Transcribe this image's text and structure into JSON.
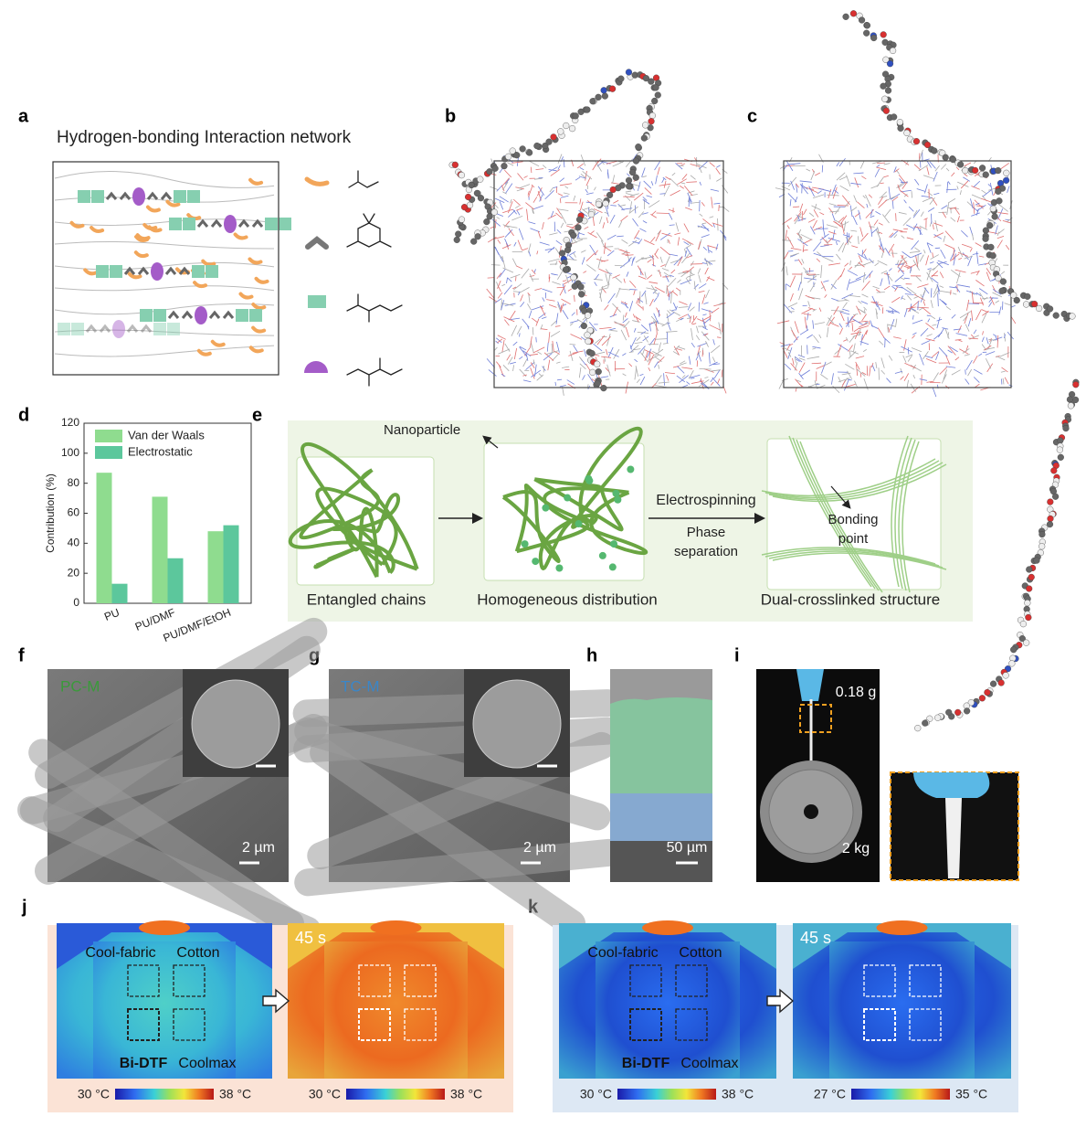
{
  "panel_a": {
    "label": "a",
    "title": "Hydrogen-bonding Interaction network"
  },
  "panel_b": {
    "label": "b"
  },
  "panel_c": {
    "label": "c"
  },
  "chart_data": {
    "panel_label": "d",
    "type": "bar",
    "ylabel": "Contribution (%)",
    "categories": [
      "PU",
      "PU/DMF",
      "PU/DMF/EtOH"
    ],
    "series": [
      {
        "name": "Van der Waals",
        "color": "#8fdc8f",
        "values": [
          87,
          71,
          48
        ]
      },
      {
        "name": "Electrostatic",
        "color": "#5cc79c",
        "values": [
          13,
          30,
          52
        ]
      }
    ],
    "ylim": [
      0,
      120
    ],
    "yticks": [
      0,
      20,
      40,
      60,
      80,
      100,
      120
    ],
    "legend": "top-left",
    "grid": false
  },
  "panel_e": {
    "label": "e",
    "nanoparticle": "Nanoparticle",
    "process_1": "Electrospinning",
    "process_2": [
      "Phase",
      "separation"
    ],
    "bonding": [
      "Bonding",
      "point"
    ],
    "stages": [
      "Entangled chains",
      "Homogeneous distribution",
      "Dual-crosslinked structure"
    ]
  },
  "panel_f": {
    "label": "f",
    "sample": "PC-M",
    "scale_bar": "2 µm"
  },
  "panel_g": {
    "label": "g",
    "sample": "TC-M",
    "scale_bar": "2 µm"
  },
  "panel_h": {
    "label": "h",
    "scale_bar": "50 µm"
  },
  "panel_i": {
    "label": "i",
    "weight_top": "0.18 g",
    "weight_bottom": "2 kg"
  },
  "panel_j": {
    "label": "j",
    "fabrics": [
      "Cool-fabric",
      "Cotton",
      "Bi-DTF",
      "Coolmax"
    ],
    "time": "45 s",
    "scales": [
      [
        "30 °C",
        "38 °C"
      ],
      [
        "30 °C",
        "38 °C"
      ]
    ]
  },
  "panel_k": {
    "label": "k",
    "fabrics": [
      "Cool-fabric",
      "Cotton",
      "Bi-DTF",
      "Coolmax"
    ],
    "time": "45 s",
    "scales": [
      [
        "30 °C",
        "38 °C"
      ],
      [
        "27 °C",
        "35 °C"
      ]
    ]
  }
}
